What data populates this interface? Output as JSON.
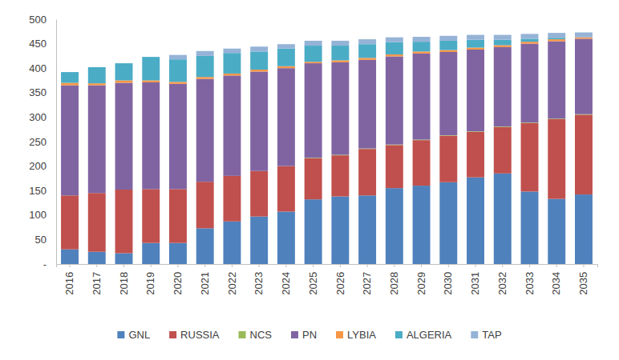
{
  "chart_data": {
    "type": "bar",
    "stacked": true,
    "legend": "bottom",
    "categories": [
      "2016",
      "2017",
      "2018",
      "2019",
      "2020",
      "2021",
      "2022",
      "2023",
      "2024",
      "2025",
      "2026",
      "2027",
      "2028",
      "2029",
      "2030",
      "2031",
      "2032",
      "2033",
      "2034",
      "2035"
    ],
    "ylim": [
      0,
      500
    ],
    "yticks": [
      {
        "value": 0,
        "label": "-"
      },
      50,
      100,
      150,
      200,
      250,
      300,
      350,
      400,
      450,
      500
    ],
    "series": [
      {
        "name": "GNL",
        "color": "#4f81bd",
        "values": [
          30,
          25,
          22,
          43,
          43,
          73,
          87,
          97,
          107,
          132,
          138,
          140,
          155,
          160,
          167,
          177,
          185,
          148,
          133,
          142
        ]
      },
      {
        "name": "RUSSIA",
        "color": "#c0504d",
        "values": [
          110,
          120,
          130,
          110,
          110,
          95,
          93,
          93,
          93,
          84,
          84,
          95,
          88,
          93,
          95,
          93,
          95,
          140,
          163,
          163
        ]
      },
      {
        "name": "NCS",
        "color": "#9bbb59",
        "values": [
          0,
          0,
          0,
          0,
          0,
          0,
          0,
          0,
          0,
          1,
          1,
          1,
          1,
          1,
          1,
          1,
          1,
          1,
          1,
          1
        ]
      },
      {
        "name": "PN",
        "color": "#8064a2",
        "values": [
          225,
          220,
          218,
          218,
          215,
          210,
          205,
          203,
          200,
          193,
          189,
          181,
          180,
          176,
          170,
          167,
          162,
          161,
          158,
          154
        ]
      },
      {
        "name": "LYBIA",
        "color": "#f79646",
        "values": [
          5,
          4,
          5,
          4,
          4,
          4,
          4,
          4,
          4,
          3,
          4,
          4,
          4,
          4,
          4,
          4,
          4,
          4,
          4,
          3
        ]
      },
      {
        "name": "ALGERIA",
        "color": "#4bacc6",
        "values": [
          22,
          33,
          35,
          48,
          46,
          43,
          42,
          37,
          36,
          33,
          30,
          28,
          25,
          20,
          19,
          16,
          11,
          6,
          3,
          0
        ]
      },
      {
        "name": "TAP",
        "color": "#95b3d7",
        "values": [
          0,
          0,
          0,
          0,
          9,
          10,
          9,
          10,
          9,
          10,
          10,
          10,
          10,
          10,
          10,
          10,
          10,
          10,
          10,
          10
        ]
      }
    ]
  }
}
